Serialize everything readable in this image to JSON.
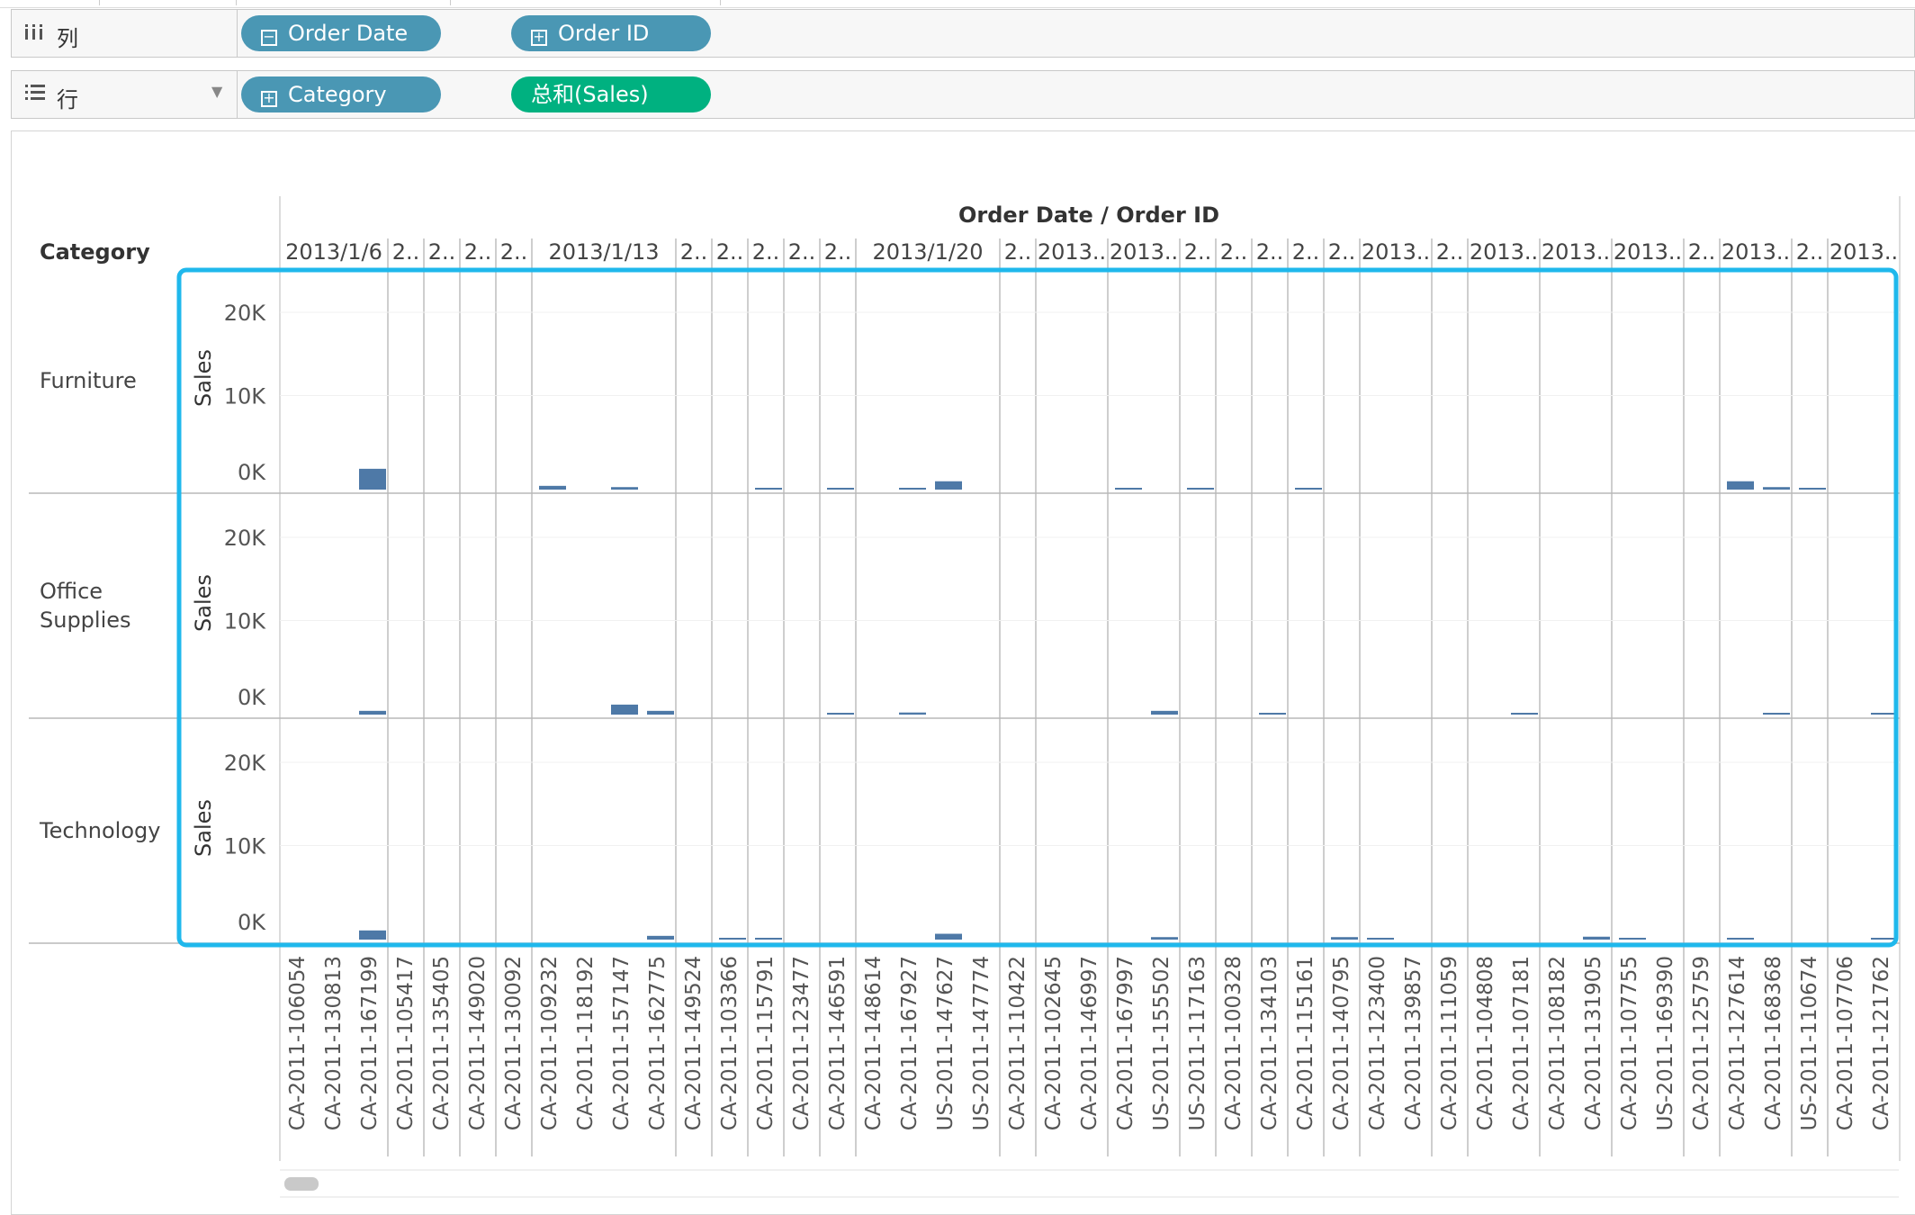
{
  "shelves": {
    "columns": {
      "icon": "columns-icon",
      "label": "列",
      "pills": [
        {
          "label": "Order Date",
          "icon": "minus-box-icon",
          "color": "#4a97b4"
        },
        {
          "label": "Order ID",
          "icon": "plus-box-icon",
          "color": "#4a97b4"
        }
      ]
    },
    "rows": {
      "icon": "rows-icon",
      "label": "行",
      "pills": [
        {
          "label": "Category",
          "icon": "plus-box-icon",
          "color": "#4a97b4"
        },
        {
          "label": "总和(Sales)",
          "icon": "",
          "color": "#00b180"
        }
      ]
    }
  },
  "view": {
    "header_title": "Order Date / Order ID",
    "category_header": "Category",
    "measure_label": "Sales",
    "categories": [
      "Furniture",
      "Office Supplies",
      "Technology"
    ],
    "selection_color": "#1fb8ec",
    "bar_color": "#4e79a7"
  },
  "chart_data": {
    "type": "bar",
    "title": "Order Date / Order ID",
    "xlabel": "Order ID",
    "ylabel": "Sales",
    "ylim": [
      0,
      20000
    ],
    "yticks": [
      "20K",
      "10K",
      "0K"
    ],
    "date_groups": [
      {
        "label": "2013/1/6",
        "count": 3
      },
      {
        "label": "2..",
        "count": 1
      },
      {
        "label": "2..",
        "count": 1
      },
      {
        "label": "2..",
        "count": 1
      },
      {
        "label": "2..",
        "count": 1
      },
      {
        "label": "2013/1/13",
        "count": 4
      },
      {
        "label": "2..",
        "count": 1
      },
      {
        "label": "2..",
        "count": 1
      },
      {
        "label": "2..",
        "count": 1
      },
      {
        "label": "2..",
        "count": 1
      },
      {
        "label": "2..",
        "count": 1
      },
      {
        "label": "2013/1/20",
        "count": 4
      },
      {
        "label": "2..",
        "count": 1
      },
      {
        "label": "2013..",
        "count": 2
      },
      {
        "label": "2013..",
        "count": 2
      },
      {
        "label": "2..",
        "count": 1
      },
      {
        "label": "2..",
        "count": 1
      },
      {
        "label": "2..",
        "count": 1
      },
      {
        "label": "2..",
        "count": 1
      },
      {
        "label": "2..",
        "count": 1
      },
      {
        "label": "2013..",
        "count": 2
      },
      {
        "label": "2..",
        "count": 1
      },
      {
        "label": "2013..",
        "count": 2
      },
      {
        "label": "2013..",
        "count": 2
      },
      {
        "label": "2013..",
        "count": 2
      },
      {
        "label": "2..",
        "count": 1
      },
      {
        "label": "2013..",
        "count": 2
      },
      {
        "label": "2..",
        "count": 1
      },
      {
        "label": "2013..",
        "count": 2
      }
    ],
    "categories": [
      "CA-2011-106054",
      "CA-2011-130813",
      "CA-2011-167199",
      "CA-2011-105417",
      "CA-2011-135405",
      "CA-2011-149020",
      "CA-2011-130092",
      "CA-2011-109232",
      "CA-2011-118192",
      "CA-2011-157147",
      "CA-2011-162775",
      "CA-2011-149524",
      "CA-2011-103366",
      "CA-2011-115791",
      "CA-2011-123477",
      "CA-2011-146591",
      "CA-2011-148614",
      "CA-2011-167927",
      "US-2011-147627",
      "US-2011-147774",
      "CA-2011-110422",
      "CA-2011-102645",
      "CA-2011-146997",
      "CA-2011-167997",
      "US-2011-155502",
      "US-2011-117163",
      "CA-2011-100328",
      "CA-2011-134103",
      "CA-2011-115161",
      "CA-2011-140795",
      "CA-2011-123400",
      "CA-2011-139857",
      "CA-2011-111059",
      "CA-2011-104808",
      "CA-2011-107181",
      "CA-2011-108182",
      "CA-2011-131905",
      "CA-2011-107755",
      "US-2011-169390",
      "CA-2011-125759",
      "CA-2011-127614",
      "CA-2011-168368",
      "US-2011-110674",
      "CA-2011-107706",
      "CA-2011-121762"
    ],
    "series": [
      {
        "name": "Furniture",
        "values": [
          0,
          0,
          2500,
          0,
          0,
          0,
          0,
          450,
          0,
          300,
          0,
          0,
          0,
          80,
          0,
          80,
          0,
          90,
          1000,
          0,
          0,
          0,
          0,
          90,
          0,
          200,
          0,
          0,
          110,
          0,
          0,
          0,
          0,
          0,
          0,
          0,
          0,
          0,
          0,
          0,
          1000,
          300,
          80,
          0,
          0
        ]
      },
      {
        "name": "Office Supplies",
        "values": [
          0,
          0,
          450,
          0,
          0,
          0,
          0,
          0,
          0,
          1200,
          450,
          0,
          0,
          0,
          0,
          30,
          0,
          250,
          0,
          0,
          0,
          0,
          0,
          0,
          450,
          0,
          0,
          50,
          0,
          0,
          0,
          0,
          0,
          0,
          30,
          0,
          0,
          0,
          0,
          0,
          0,
          30,
          0,
          0,
          200
        ]
      },
      {
        "name": "Technology",
        "values": [
          0,
          0,
          1100,
          0,
          0,
          0,
          0,
          0,
          0,
          0,
          450,
          0,
          100,
          100,
          0,
          0,
          0,
          0,
          700,
          0,
          0,
          0,
          0,
          0,
          300,
          0,
          0,
          0,
          0,
          300,
          100,
          0,
          0,
          0,
          0,
          0,
          350,
          100,
          0,
          0,
          80,
          0,
          0,
          0,
          100
        ]
      }
    ],
    "grid": true,
    "legend": "none"
  }
}
